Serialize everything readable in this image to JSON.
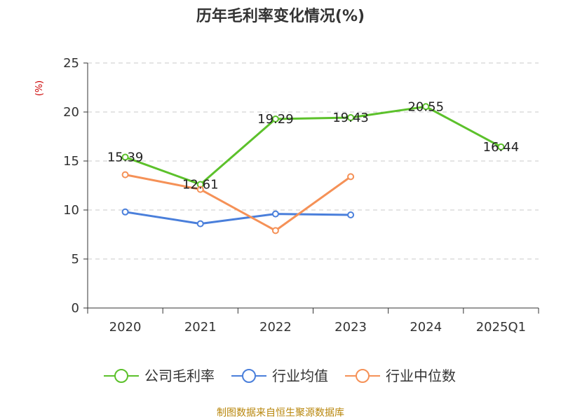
{
  "chart_data": {
    "type": "line",
    "title": "历年毛利率变化情况(%)",
    "ylabel": "(%)",
    "categories": [
      "2020",
      "2021",
      "2022",
      "2023",
      "2024",
      "2025Q1"
    ],
    "ylim": [
      0,
      25
    ],
    "yticks": [
      0,
      5,
      10,
      15,
      20,
      25
    ],
    "grid": true,
    "legend_position": "bottom",
    "series": [
      {
        "name": "公司毛利率",
        "color": "#5cc12b",
        "values": [
          15.39,
          12.61,
          19.29,
          19.43,
          20.55,
          16.44
        ],
        "labels": [
          "15.39",
          "12.61",
          "19.29",
          "19.43",
          "20.55",
          "16.44"
        ]
      },
      {
        "name": "行业均值",
        "color": "#4a7fdb",
        "values": [
          9.8,
          8.6,
          9.6,
          9.5,
          null,
          null
        ]
      },
      {
        "name": "行业中位数",
        "color": "#f59157",
        "values": [
          13.6,
          12.1,
          7.9,
          13.4,
          null,
          null
        ]
      }
    ],
    "ylabel_color": "#cc0000"
  },
  "source": {
    "text": "制图数据来自恒生聚源数据库",
    "color": "#b8860b"
  }
}
